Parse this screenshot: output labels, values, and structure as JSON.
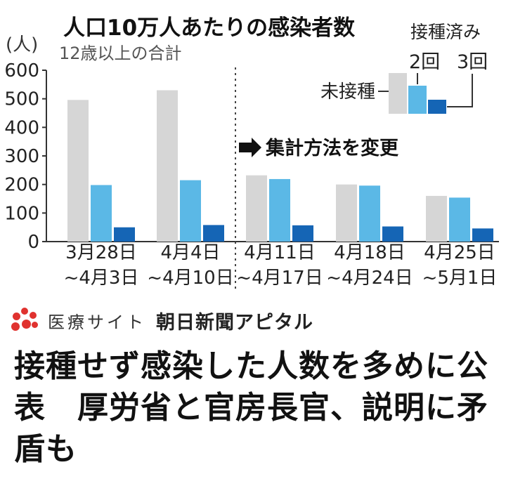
{
  "chart_data": {
    "type": "bar",
    "title": "人口10万人あたりの感染者数",
    "subtitle": "12歳以上の合計",
    "ylabel": "(人)",
    "ylim": [
      0,
      600
    ],
    "yticks": [
      0,
      100,
      200,
      300,
      400,
      500,
      600
    ],
    "categories": [
      [
        "3月28日",
        "~4月3日"
      ],
      [
        "4月4日",
        "~4月10日"
      ],
      [
        "4月11日",
        "~4月17日"
      ],
      [
        "4月18日",
        "~4月24日"
      ],
      [
        "4月25日",
        "~5月1日"
      ]
    ],
    "series": [
      {
        "name": "未接種",
        "color": "#d6d6d6",
        "values": [
          496,
          530,
          232,
          200,
          160
        ]
      },
      {
        "name": "2回",
        "color": "#5bb8e6",
        "values": [
          198,
          215,
          219,
          196,
          154
        ]
      },
      {
        "name": "3回",
        "color": "#1565b5",
        "values": [
          50,
          58,
          57,
          53,
          46
        ]
      }
    ],
    "legend": {
      "title": "接種済み",
      "placement": "top-right"
    },
    "annotation": "集計方法を変更",
    "divider_after_category": 1
  },
  "site": {
    "label": "医療サイト",
    "brand": "朝日新聞アピタル"
  },
  "headline": "接種せず感染した人数を多めに公表　厚労省と官房長官、説明に矛盾も",
  "colors": {
    "logo": "#e0322f"
  }
}
